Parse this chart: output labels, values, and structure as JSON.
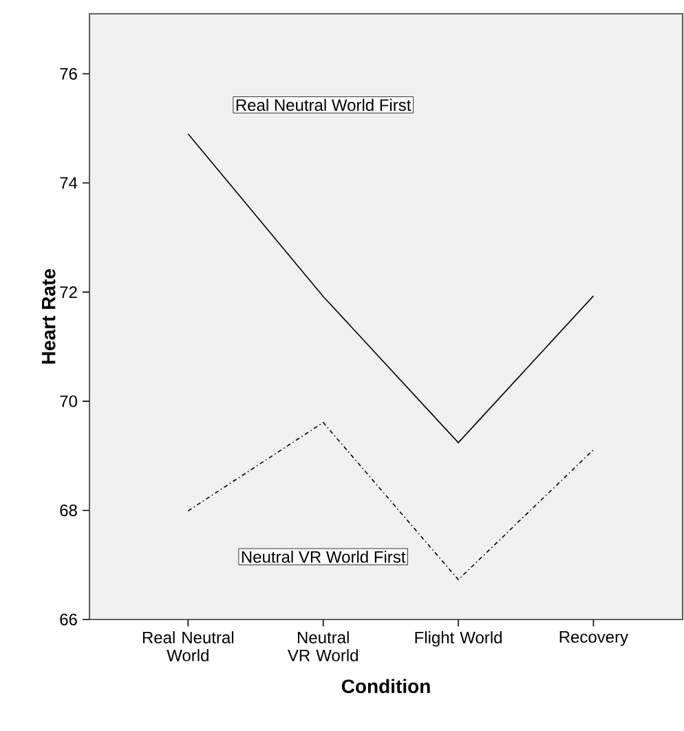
{
  "chart_data": {
    "type": "line",
    "xlabel": "Condition",
    "ylabel": "Heart Rate",
    "categories": [
      "Real Neutral World",
      "Neutral VR World",
      "Flight World",
      "Recovery"
    ],
    "series": [
      {
        "name": "Real Neutral World First",
        "color": "#000000",
        "line_style": "solid",
        "values": [
          74.9,
          71.92,
          69.24,
          71.93
        ]
      },
      {
        "name": "Neutral VR World First",
        "color": "#000000",
        "line_style": "dashed",
        "values": [
          67.99,
          69.61,
          66.73,
          69.11
        ]
      }
    ],
    "ylim": [
      66,
      77.1
    ],
    "yticks": [
      66,
      68,
      70,
      72,
      74,
      76
    ],
    "grid": false,
    "legend": false,
    "marker": "none"
  }
}
